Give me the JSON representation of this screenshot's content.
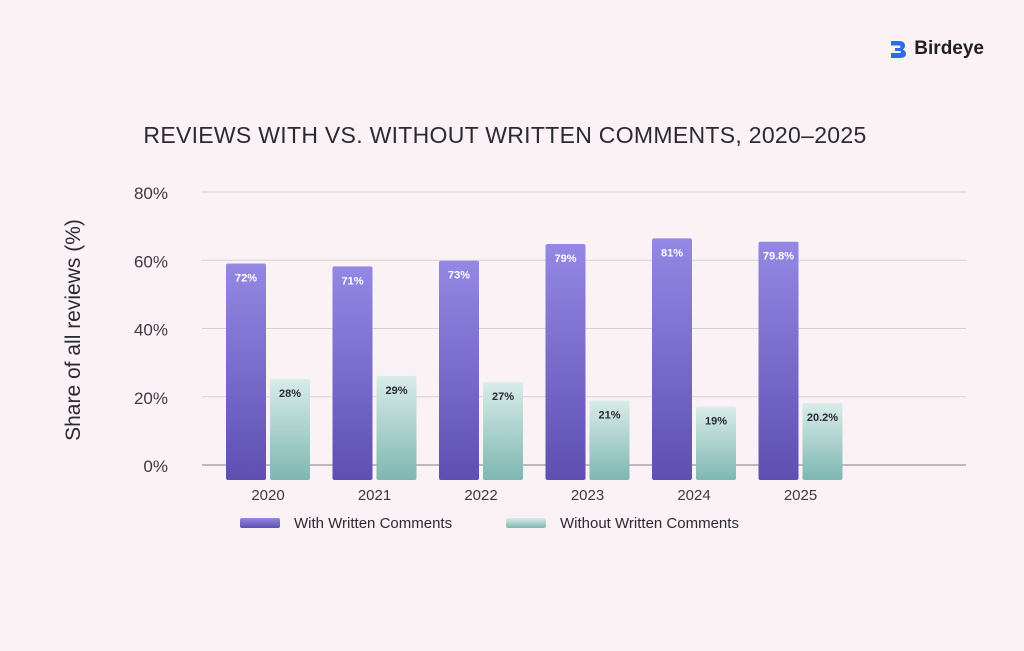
{
  "brand": {
    "name": "Birdeye"
  },
  "colors": {
    "background": "#fbf2f5",
    "grid": "#d8cfd6",
    "with_top": "#9488e4",
    "with_bottom": "#5e4fb0",
    "without_top": "#d9ece9",
    "without_bottom": "#7eb7b2"
  },
  "chart_data": {
    "type": "bar",
    "title": "REVIEWS WITH VS. WITHOUT WRITTEN COMMENTS, 2020–2025",
    "ylabel": "Share of all reviews (%)",
    "xlabel": "",
    "categories": [
      "2020",
      "2021",
      "2022",
      "2023",
      "2024",
      "2025"
    ],
    "ylim": [
      0,
      80
    ],
    "yticks": [
      "0%",
      "20%",
      "40%",
      "60%",
      "80%"
    ],
    "ytick_values": [
      0,
      20,
      40,
      60,
      80
    ],
    "grid": true,
    "legend_position": "bottom",
    "series": [
      {
        "name": "With Written Comments",
        "values": [
          72,
          71,
          73,
          79,
          81,
          79.8
        ],
        "labels": [
          "72%",
          "71%",
          "73%",
          "79%",
          "81%",
          "79.8%"
        ]
      },
      {
        "name": "Without Written Comments",
        "values": [
          28,
          29,
          27,
          21,
          19,
          20.2
        ],
        "labels": [
          "28%",
          "29%",
          "27%",
          "21%",
          "19%",
          "20.2%"
        ]
      }
    ]
  }
}
